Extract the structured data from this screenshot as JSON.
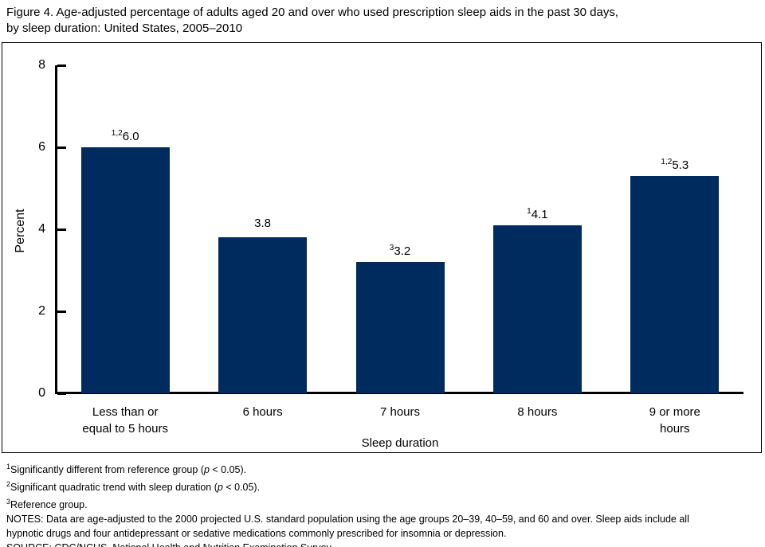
{
  "title_lines": [
    "Figure 4. Age-adjusted percentage of adults aged 20 and over who used prescription sleep aids in the past 30 days,",
    "by sleep duration: United States, 2005–2010"
  ],
  "chart_data": {
    "type": "bar",
    "title": "Figure 4. Age-adjusted percentage of adults aged 20 and over who used prescription sleep aids in the past 30 days, by sleep duration: United States, 2005–2010",
    "xlabel": "Sleep duration",
    "ylabel": "Percent",
    "ylim": [
      0,
      8
    ],
    "yticks": [
      0,
      2,
      4,
      6,
      8
    ],
    "grid": false,
    "legend": "none",
    "bar_color": "#002b5e",
    "categories": [
      "Less than or equal to 5 hours",
      "6 hours",
      "7 hours",
      "8 hours",
      "9 or more hours"
    ],
    "category_lines": [
      [
        "Less than or",
        "equal to 5 hours"
      ],
      [
        "6 hours"
      ],
      [
        "7 hours"
      ],
      [
        "8 hours"
      ],
      [
        "9 or more",
        "hours"
      ]
    ],
    "values": [
      6.0,
      3.8,
      3.2,
      4.1,
      5.3
    ],
    "value_labels": [
      "6.0",
      "3.8",
      "3.2",
      "4.1",
      "5.3"
    ],
    "superscripts": [
      "1,2",
      "",
      "3",
      "1",
      "1,2"
    ]
  },
  "footnotes": [
    {
      "sup": "1",
      "parts": [
        "Significantly different from reference group (",
        "p",
        " < 0.05)."
      ]
    },
    {
      "sup": "2",
      "parts": [
        "Significant quadratic trend with sleep duration (",
        "p",
        " < 0.05)."
      ]
    },
    {
      "sup": "3",
      "parts": [
        "Reference group."
      ]
    },
    {
      "sup": "",
      "parts": [
        "NOTES: Data are age-adjusted to the 2000 projected U.S. standard population using the age groups 20–39, 40–59, and 60 and over. Sleep aids include all"
      ]
    },
    {
      "sup": "",
      "parts": [
        "hypnotic drugs and four antidepressant or sedative medications commonly prescribed for insomnia or depression."
      ]
    },
    {
      "sup": "",
      "parts": [
        "SOURCE: CDC/NCHS, National Health and Nutrition Examination Survey."
      ]
    }
  ]
}
